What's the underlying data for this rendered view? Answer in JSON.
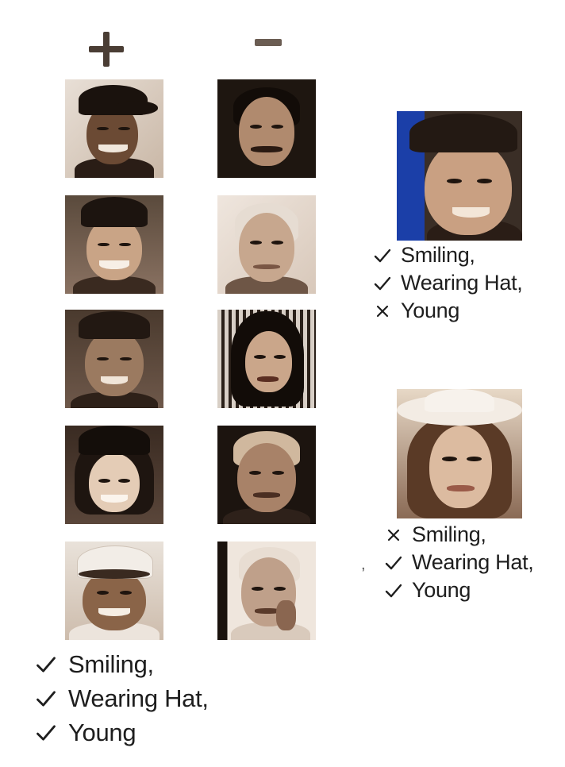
{
  "columns": {
    "positive_symbol": "+",
    "negative_symbol": "−"
  },
  "positive_examples": [
    {
      "id": "pos-1",
      "hat": true
    },
    {
      "id": "pos-2",
      "hat": true
    },
    {
      "id": "pos-3",
      "hat": true
    },
    {
      "id": "pos-4",
      "hat": true
    },
    {
      "id": "pos-5",
      "hat": true
    }
  ],
  "negative_examples": [
    {
      "id": "neg-1",
      "hat": false
    },
    {
      "id": "neg-2",
      "hat": false
    },
    {
      "id": "neg-3",
      "hat": false
    },
    {
      "id": "neg-4",
      "hat": false
    },
    {
      "id": "neg-5",
      "hat": false
    }
  ],
  "group_attributes": [
    {
      "mark": "check",
      "text": "Smiling,"
    },
    {
      "mark": "check",
      "text": "Wearing Hat,"
    },
    {
      "mark": "check",
      "text": "Young"
    }
  ],
  "query_1": {
    "attributes": [
      {
        "mark": "check",
        "text": "Smiling,"
      },
      {
        "mark": "check",
        "text": "Wearing Hat,"
      },
      {
        "mark": "cross",
        "text": "Young"
      }
    ]
  },
  "query_2": {
    "attributes": [
      {
        "mark": "cross",
        "text": "Smiling,"
      },
      {
        "mark": "check",
        "text": "Wearing Hat,"
      },
      {
        "mark": "check",
        "text": "Young"
      }
    ]
  },
  "stray_mark": ",",
  "colors": {
    "sepia_dark": "#2a1d16",
    "sepia_mid": "#8a6a55",
    "sepia_light": "#d9c4b0",
    "text": "#1e1e1e"
  }
}
